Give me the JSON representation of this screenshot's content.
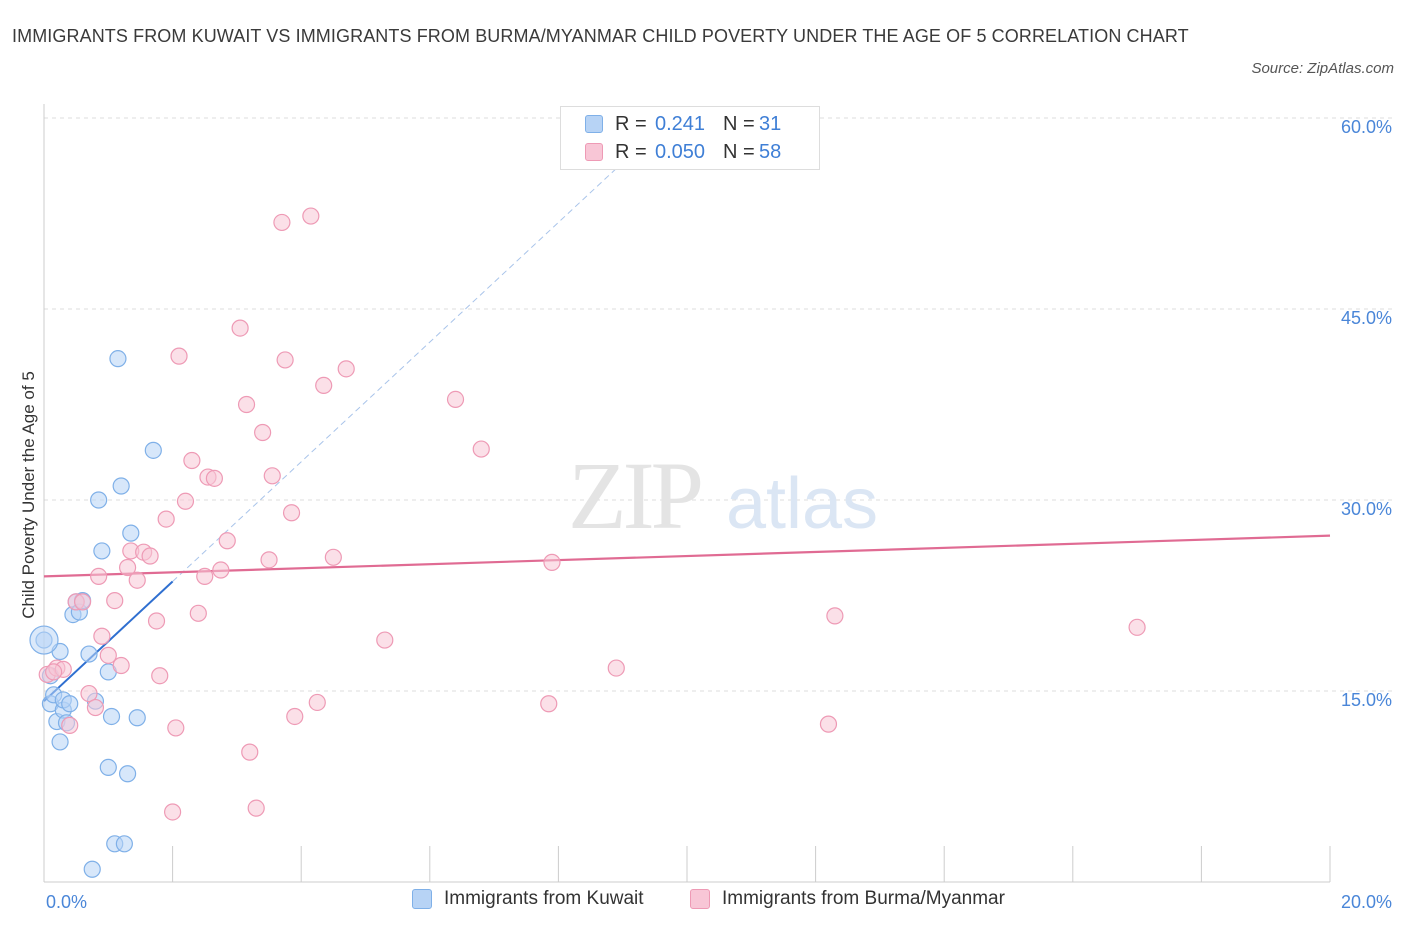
{
  "title": "IMMIGRANTS FROM KUWAIT VS IMMIGRANTS FROM BURMA/MYANMAR CHILD POVERTY UNDER THE AGE OF 5 CORRELATION CHART",
  "source": "Source: ZipAtlas.com",
  "watermark": {
    "zip": "ZIP",
    "atlas": "atlas"
  },
  "legend": {
    "series1": {
      "r_label": "R =",
      "r_value": "0.241",
      "n_label": "N =",
      "n_value": "31"
    },
    "series2": {
      "r_label": "R =",
      "r_value": "0.050",
      "n_label": "N =",
      "n_value": "58"
    }
  },
  "colors": {
    "kuwait_fill": "#b7d3f5",
    "kuwait_stroke": "#7fb0e8",
    "kuwait_line": "#2f6fd0",
    "burma_fill": "#f8c6d6",
    "burma_stroke": "#ee9ab5",
    "burma_line": "#e06b93",
    "axis_label": "#4a86d8",
    "grid": "#dddddd"
  },
  "chart_data": {
    "type": "scatter",
    "title": "IMMIGRANTS FROM KUWAIT VS IMMIGRANTS FROM BURMA/MYANMAR CHILD POVERTY UNDER THE AGE OF 5 CORRELATION CHART",
    "xlabel": "",
    "ylabel": "Child Poverty Under the Age of 5",
    "xlim": [
      0,
      20
    ],
    "ylim": [
      0,
      60
    ],
    "x_tick_labels": [
      "0.0%",
      "20.0%"
    ],
    "y_ticks": [
      15,
      30,
      45,
      60
    ],
    "y_tick_labels": [
      "15.0%",
      "30.0%",
      "45.0%",
      "60.0%"
    ],
    "series": [
      {
        "name": "Immigrants from Kuwait",
        "r": 0.241,
        "n": 31,
        "trend": {
          "x0": 0.0,
          "y0": 14.2,
          "x1": 2.0,
          "y1": 23.6,
          "extended_x1": 9.0,
          "extended_y1": 56.5
        },
        "points": [
          [
            0.0,
            19.0
          ],
          [
            0.1,
            14.0
          ],
          [
            0.15,
            14.7
          ],
          [
            0.2,
            12.6
          ],
          [
            0.25,
            18.1
          ],
          [
            0.3,
            13.5
          ],
          [
            0.3,
            14.3
          ],
          [
            0.35,
            12.5
          ],
          [
            0.4,
            14.0
          ],
          [
            0.45,
            21.0
          ],
          [
            0.5,
            22.0
          ],
          [
            0.55,
            21.2
          ],
          [
            0.6,
            22.1
          ],
          [
            0.7,
            17.9
          ],
          [
            0.8,
            14.2
          ],
          [
            0.85,
            30.0
          ],
          [
            0.9,
            26.0
          ],
          [
            1.0,
            9.0
          ],
          [
            1.0,
            16.5
          ],
          [
            1.05,
            13.0
          ],
          [
            1.1,
            3.0
          ],
          [
            1.15,
            41.1
          ],
          [
            1.2,
            31.1
          ],
          [
            1.25,
            3.0
          ],
          [
            1.3,
            8.5
          ],
          [
            1.35,
            27.4
          ],
          [
            1.45,
            12.9
          ],
          [
            1.7,
            33.9
          ],
          [
            0.75,
            1.0
          ],
          [
            0.25,
            11.0
          ],
          [
            0.1,
            16.2
          ]
        ]
      },
      {
        "name": "Immigrants from Burma/Myanmar",
        "r": 0.05,
        "n": 58,
        "trend": {
          "x0": 0.0,
          "y0": 24.0,
          "x1": 20.0,
          "y1": 27.2
        },
        "points": [
          [
            0.05,
            16.3
          ],
          [
            0.2,
            16.8
          ],
          [
            0.3,
            16.7
          ],
          [
            0.4,
            12.3
          ],
          [
            0.5,
            22.0
          ],
          [
            0.6,
            22.0
          ],
          [
            0.7,
            14.8
          ],
          [
            0.8,
            13.7
          ],
          [
            0.85,
            24.0
          ],
          [
            0.9,
            19.3
          ],
          [
            1.0,
            17.8
          ],
          [
            1.1,
            22.1
          ],
          [
            1.2,
            17.0
          ],
          [
            1.3,
            24.7
          ],
          [
            1.35,
            26.0
          ],
          [
            1.45,
            23.7
          ],
          [
            1.55,
            25.9
          ],
          [
            1.65,
            25.6
          ],
          [
            1.75,
            20.5
          ],
          [
            1.8,
            16.2
          ],
          [
            1.9,
            28.5
          ],
          [
            2.05,
            12.1
          ],
          [
            2.1,
            41.3
          ],
          [
            2.2,
            29.9
          ],
          [
            2.3,
            33.1
          ],
          [
            2.4,
            21.1
          ],
          [
            2.5,
            24.0
          ],
          [
            2.55,
            31.8
          ],
          [
            2.65,
            31.7
          ],
          [
            2.75,
            24.5
          ],
          [
            2.85,
            26.8
          ],
          [
            3.05,
            43.5
          ],
          [
            3.15,
            37.5
          ],
          [
            3.2,
            10.2
          ],
          [
            3.3,
            5.8
          ],
          [
            3.4,
            35.3
          ],
          [
            3.5,
            25.3
          ],
          [
            3.55,
            31.9
          ],
          [
            3.7,
            51.8
          ],
          [
            3.75,
            41.0
          ],
          [
            3.85,
            29.0
          ],
          [
            3.9,
            13.0
          ],
          [
            4.15,
            52.3
          ],
          [
            4.25,
            14.1
          ],
          [
            4.35,
            39.0
          ],
          [
            4.5,
            25.5
          ],
          [
            4.7,
            40.3
          ],
          [
            5.3,
            19.0
          ],
          [
            6.4,
            37.9
          ],
          [
            6.8,
            34.0
          ],
          [
            7.85,
            14.0
          ],
          [
            7.9,
            25.1
          ],
          [
            8.9,
            16.8
          ],
          [
            12.2,
            12.4
          ],
          [
            12.3,
            20.9
          ],
          [
            17.0,
            20.0
          ],
          [
            2.0,
            5.5
          ],
          [
            0.15,
            16.5
          ]
        ]
      }
    ]
  },
  "bottom_legend": {
    "kuwait": "Immigrants from Kuwait",
    "burma": "Immigrants from Burma/Myanmar"
  }
}
